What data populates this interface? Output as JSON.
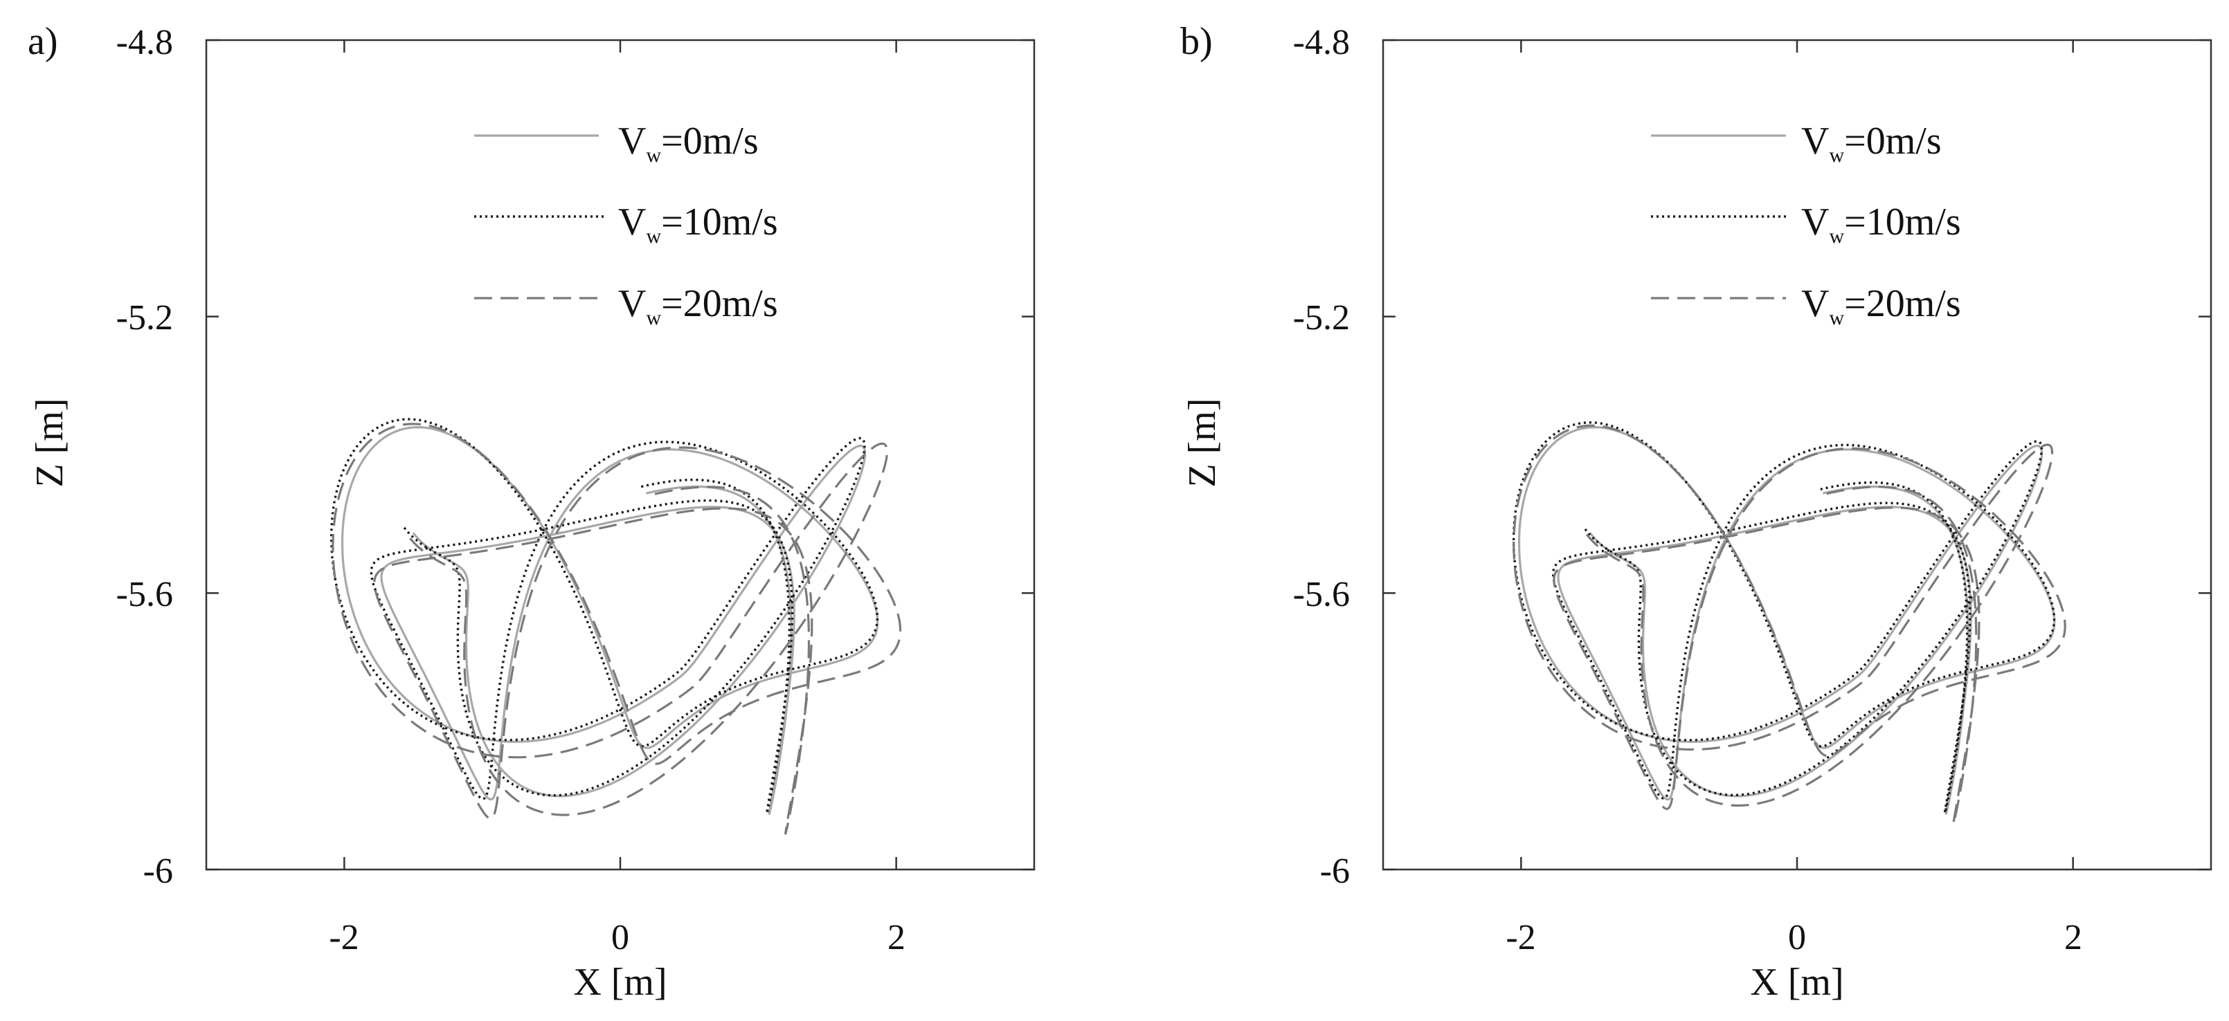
{
  "chart_data": [
    {
      "type": "line",
      "panel_label": "a)",
      "xlabel": "X [m]",
      "ylabel": "Z [m]",
      "xlim": [
        -3,
        3
      ],
      "ylim": [
        -6,
        -4.8
      ],
      "y_inverted": true,
      "x_ticks": [
        "-2",
        "0",
        "2"
      ],
      "y_ticks": [
        "-4.8",
        "-5.2",
        "-5.6",
        "-6"
      ],
      "grid": false,
      "legend_position": "top-right",
      "series": [
        {
          "symbol": "V",
          "subscript": "w",
          "value": "=0m/s",
          "style": "solid",
          "color": "#a8a8a8",
          "width": 3.2,
          "x_offset": 0.0,
          "z_offset": 0.0,
          "amp": 1.0
        },
        {
          "symbol": "V",
          "subscript": "w",
          "value": "=10m/s",
          "style": "dotted",
          "color": "#1a1a1a",
          "width": 3.4,
          "x_offset": -0.04,
          "z_offset": 0.006,
          "amp": 1.02
        },
        {
          "symbol": "V",
          "subscript": "w",
          "value": "=20m/s",
          "style": "dashed",
          "color": "#7a7a7a",
          "width": 3.2,
          "x_offset": 0.05,
          "z_offset": -0.012,
          "amp": 1.06
        }
      ]
    },
    {
      "type": "line",
      "panel_label": "b)",
      "xlabel": "X [m]",
      "ylabel": "Z [m]",
      "xlim": [
        -3,
        3
      ],
      "ylim": [
        -6,
        -4.8
      ],
      "y_inverted": true,
      "x_ticks": [
        "-2",
        "0",
        "2"
      ],
      "y_ticks": [
        "-4.8",
        "-5.2",
        "-5.6",
        "-6"
      ],
      "grid": false,
      "legend_position": "top-right",
      "series": [
        {
          "symbol": "V",
          "subscript": "w",
          "value": "=0m/s",
          "style": "solid",
          "color": "#a8a8a8",
          "width": 3.2,
          "x_offset": 0.0,
          "z_offset": 0.0,
          "amp": 1.0
        },
        {
          "symbol": "V",
          "subscript": "w",
          "value": "=10m/s",
          "style": "dotted",
          "color": "#1a1a1a",
          "width": 3.4,
          "x_offset": -0.02,
          "z_offset": 0.004,
          "amp": 1.01
        },
        {
          "symbol": "V",
          "subscript": "w",
          "value": "=20m/s",
          "style": "dashed",
          "color": "#7a7a7a",
          "width": 3.2,
          "x_offset": 0.02,
          "z_offset": -0.006,
          "amp": 1.03
        }
      ]
    }
  ]
}
